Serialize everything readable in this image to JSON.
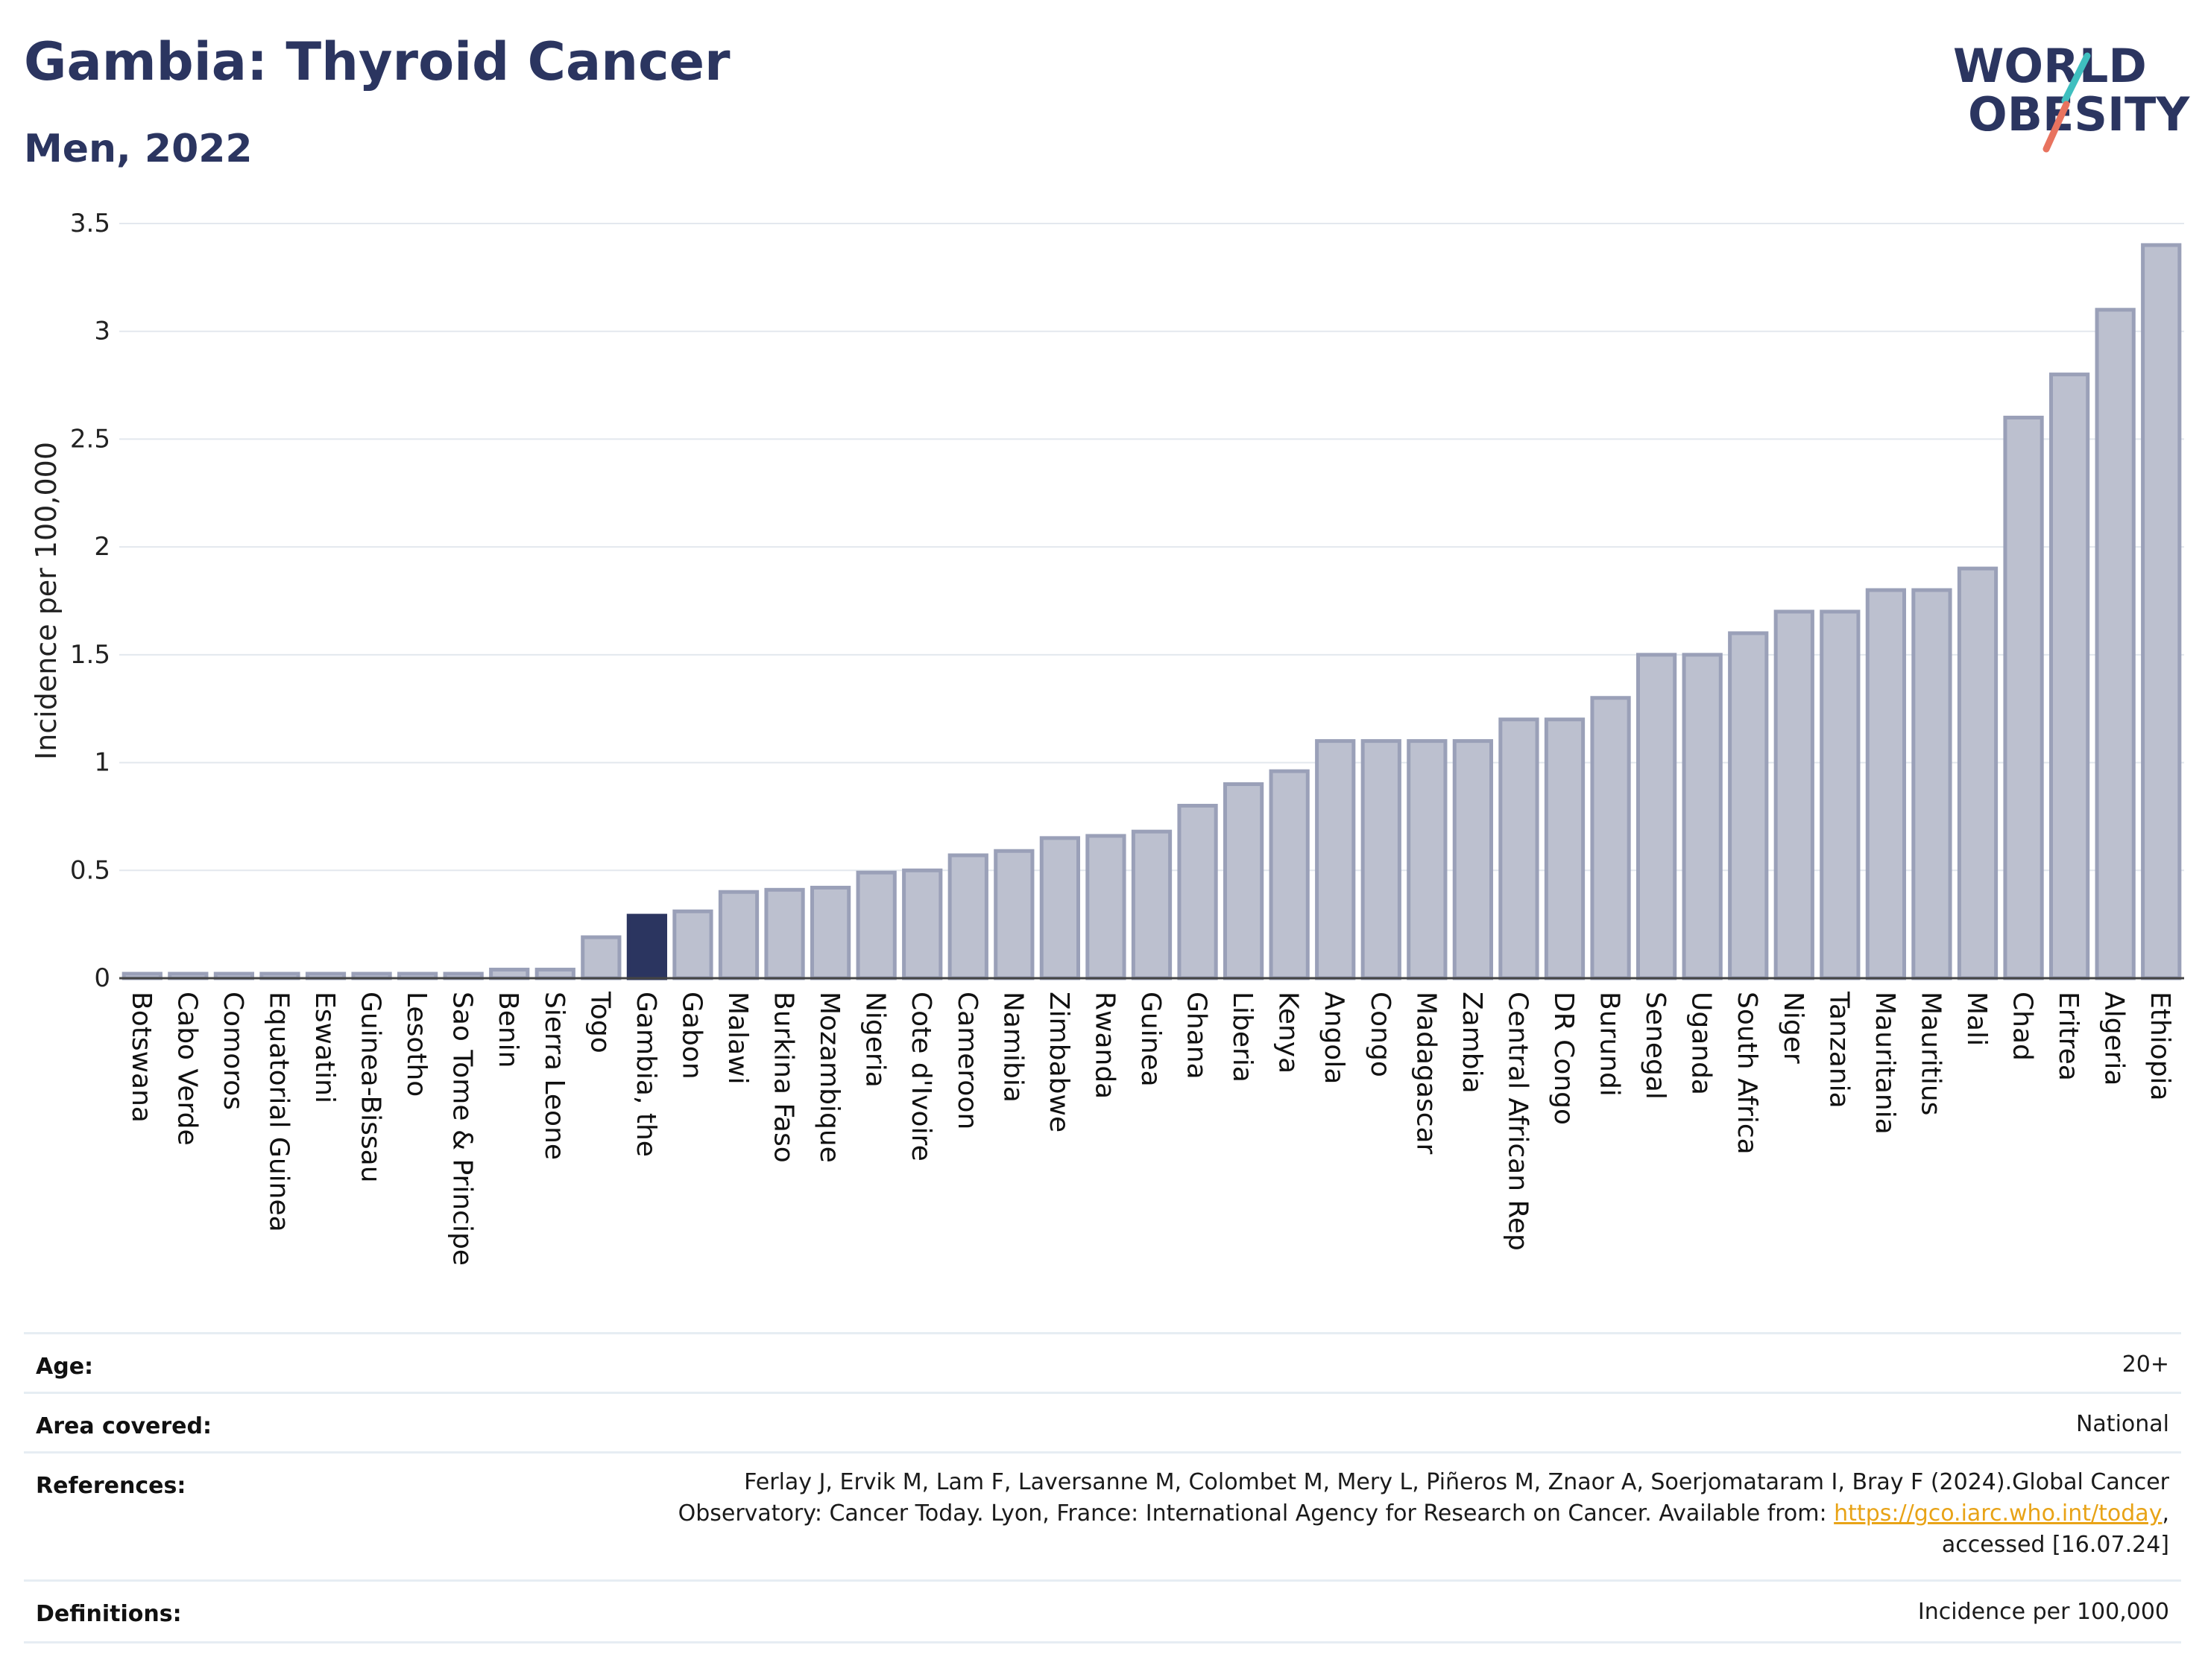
{
  "header": {
    "title": "Gambia: Thyroid Cancer",
    "subtitle": "Men, 2022",
    "logo_top": "WORLD",
    "logo_bottom": "OBESITY"
  },
  "colors": {
    "title": "#2b3560",
    "bar": "#bcc0cf",
    "bar_border": "#9aa0b8",
    "highlight": "#2b3560",
    "logo_text": "#2b3560",
    "logo_slash_top": "#3fbfbf",
    "logo_slash_bottom": "#e8735f",
    "link": "#e8a317"
  },
  "chart_data": {
    "type": "bar",
    "ylabel": "Incidence per 100,000",
    "ylim": [
      0,
      3.5
    ],
    "yticks": [
      "0",
      "0.5",
      "1",
      "1.5",
      "2",
      "2.5",
      "3",
      "3.5"
    ],
    "highlight_category": "Gambia, the",
    "categories": [
      "Botswana",
      "Cabo Verde",
      "Comoros",
      "Equatorial Guinea",
      "Eswatini",
      "Guinea-Bissau",
      "Lesotho",
      "Sao Tome & Principe",
      "Benin",
      "Sierra Leone",
      "Togo",
      "Gambia, the",
      "Gabon",
      "Malawi",
      "Burkina Faso",
      "Mozambique",
      "Nigeria",
      "Cote d'Ivoire",
      "Cameroon",
      "Namibia",
      "Zimbabwe",
      "Rwanda",
      "Guinea",
      "Ghana",
      "Liberia",
      "Kenya",
      "Angola",
      "Congo",
      "Madagascar",
      "Zambia",
      "Central African Rep",
      "DR Congo",
      "Burundi",
      "Senegal",
      "Uganda",
      "South Africa",
      "Niger",
      "Tanzania",
      "Mauritania",
      "Mauritius",
      "Mali",
      "Chad",
      "Eritrea",
      "Algeria",
      "Ethiopia"
    ],
    "values": [
      0,
      0,
      0,
      0,
      0,
      0,
      0,
      0,
      0.04,
      0.04,
      0.19,
      0.29,
      0.31,
      0.4,
      0.41,
      0.42,
      0.49,
      0.5,
      0.57,
      0.59,
      0.65,
      0.66,
      0.68,
      0.8,
      0.9,
      0.96,
      1.1,
      1.1,
      1.1,
      1.1,
      1.2,
      1.2,
      1.3,
      1.5,
      1.5,
      1.6,
      1.7,
      1.7,
      1.8,
      1.8,
      1.9,
      2.6,
      2.8,
      3.1,
      3.4
    ]
  },
  "meta": {
    "age_label": "Age:",
    "age_value": "20+",
    "area_label": "Area covered:",
    "area_value": "National",
    "references_label": "References:",
    "references_line1": "Ferlay J, Ervik M, Lam F, Laversanne M, Colombet M, Mery L, Piñeros M, Znaor A, Soerjomataram I, Bray F (2024).Global Cancer",
    "references_line2_prefix": "Observatory: Cancer Today. Lyon, France: International Agency for Research on Cancer. Available from: ",
    "references_link": "https://gco.iarc.who.int/today",
    "references_line2_suffix": ",",
    "references_line3": "accessed [16.07.24]",
    "definitions_label": "Definitions:",
    "definitions_value": "Incidence per 100,000"
  }
}
